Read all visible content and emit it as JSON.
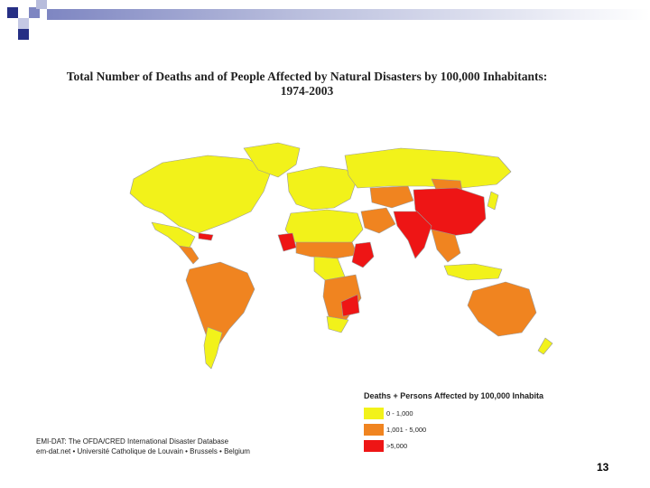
{
  "slide": {
    "title_line1": "Total Number of Deaths and of People Affected by Natural Disasters by 100,000 Inhabitants:",
    "title_line2": "1974-2003",
    "page_number": "13",
    "accent_color": "#262f85"
  },
  "map": {
    "ocean_color": "#ffffff",
    "regions": [
      {
        "name": "North America",
        "category": "low"
      },
      {
        "name": "Greenland",
        "category": "low"
      },
      {
        "name": "Mexico",
        "category": "low"
      },
      {
        "name": "Central America",
        "category": "medium"
      },
      {
        "name": "Cuba",
        "category": "high"
      },
      {
        "name": "South America",
        "category": "medium"
      },
      {
        "name": "Argentina",
        "category": "low"
      },
      {
        "name": "Europe",
        "category": "low"
      },
      {
        "name": "Russia",
        "category": "low"
      },
      {
        "name": "North Africa",
        "category": "low"
      },
      {
        "name": "Sahel",
        "category": "medium"
      },
      {
        "name": "West Africa",
        "category": "high"
      },
      {
        "name": "Central Africa",
        "category": "low"
      },
      {
        "name": "East Africa",
        "category": "high"
      },
      {
        "name": "Southern Africa",
        "category": "medium"
      },
      {
        "name": "Mozambique",
        "category": "high"
      },
      {
        "name": "South Africa",
        "category": "low"
      },
      {
        "name": "Middle East",
        "category": "medium"
      },
      {
        "name": "Central Asia",
        "category": "medium"
      },
      {
        "name": "Mongolia",
        "category": "medium"
      },
      {
        "name": "China",
        "category": "high"
      },
      {
        "name": "South Asia",
        "category": "high"
      },
      {
        "name": "Southeast Asia",
        "category": "medium"
      },
      {
        "name": "Japan",
        "category": "low"
      },
      {
        "name": "Indonesia",
        "category": "low"
      },
      {
        "name": "Australia",
        "category": "medium"
      },
      {
        "name": "New Zealand",
        "category": "low"
      }
    ]
  },
  "legend": {
    "title": "Deaths + Persons Affected by 100,000 Inhabita",
    "items": [
      {
        "key": "low",
        "label": "0 - 1,000",
        "color": "#f2f21a"
      },
      {
        "key": "medium",
        "label": "1,001 - 5,000",
        "color": "#f08420"
      },
      {
        "key": "high",
        "label": ">5,000",
        "color": "#ee1515"
      }
    ]
  },
  "source": {
    "line1": "EMI-DAT: The OFDA/CRED International Disaster Database",
    "line2": "em-dat.net • Université Catholique de Louvain • Brussels • Belgium"
  }
}
